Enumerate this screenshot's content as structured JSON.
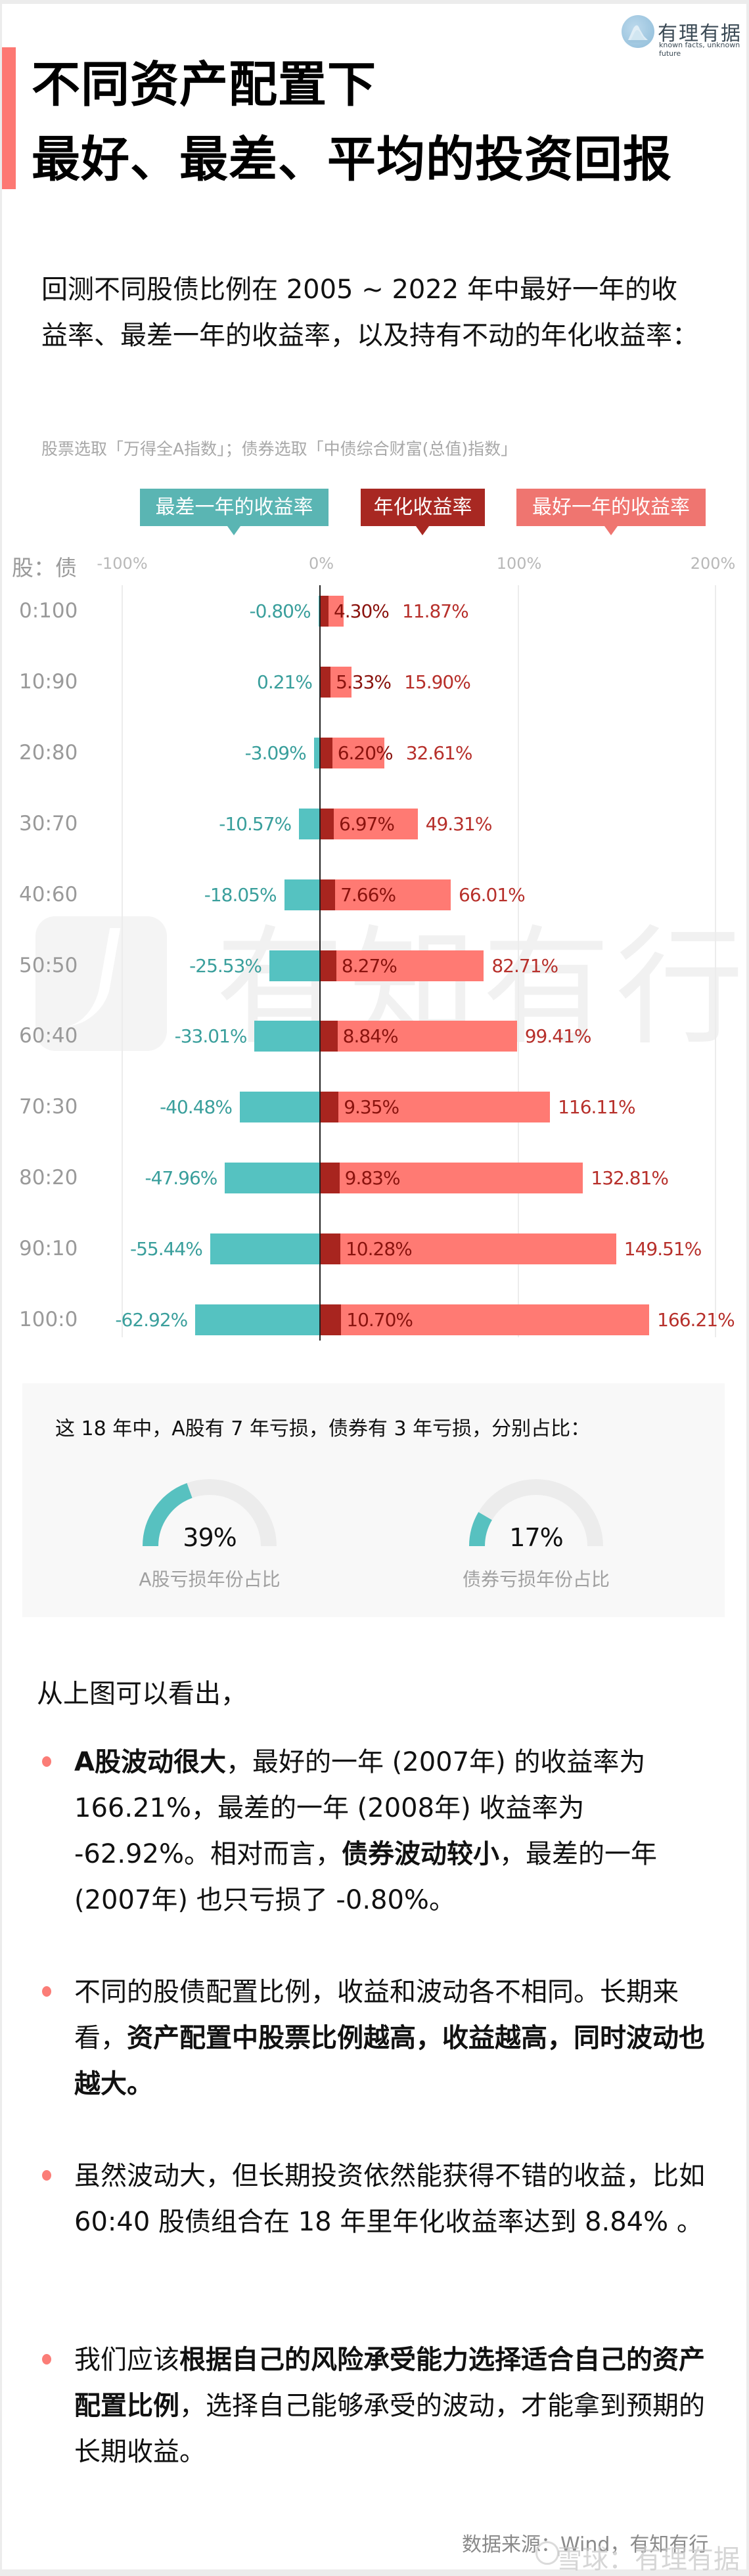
{
  "header": {
    "brand_name": "有理有据",
    "brand_tagline": "known facts, unknown future",
    "title_lines": [
      "不同资产配置下",
      "最好、最差、平均的投资回报"
    ]
  },
  "intro": {
    "text": "回测不同股债比例在 2005 ~ 2022 年中最好一年的收益率、最差一年的收益率，以及持有不动的年化收益率：",
    "note": "股票选取「万得全A指数」；债券选取「中债综合财富(总值)指数」"
  },
  "colors": {
    "worst": "#55c2c1",
    "annual": "#a8251f",
    "best": "#ff7a73",
    "accent": "#fd7873"
  },
  "legend": {
    "worst": "最差一年的收益率",
    "annual": "年化收益率",
    "best": "最好一年的收益率"
  },
  "axis": {
    "row_header": "股：债",
    "ticks": [
      "-100%",
      "0%",
      "100%",
      "200%"
    ]
  },
  "watermark": {
    "chart": "有知有行",
    "footer": "雪球：有理有据"
  },
  "chart_data": {
    "type": "bar",
    "title": "不同资产配置下 最好、最差、平均的投资回报",
    "orientation": "horizontal",
    "categories": [
      "0:100",
      "10:90",
      "20:80",
      "30:70",
      "40:60",
      "50:50",
      "60:40",
      "70:30",
      "80:20",
      "90:10",
      "100:0"
    ],
    "category_label": "股：债",
    "series": [
      {
        "name": "最差一年的收益率",
        "values": [
          -0.8,
          0.21,
          -3.09,
          -10.57,
          -18.05,
          -25.53,
          -33.01,
          -40.48,
          -47.96,
          -55.44,
          -62.92
        ]
      },
      {
        "name": "年化收益率",
        "values": [
          4.3,
          5.33,
          6.2,
          6.97,
          7.66,
          8.27,
          8.84,
          9.35,
          9.83,
          10.28,
          10.7
        ]
      },
      {
        "name": "最好一年的收益率",
        "values": [
          11.87,
          15.9,
          32.61,
          49.31,
          66.01,
          82.71,
          99.41,
          116.11,
          132.81,
          149.51,
          166.21
        ]
      }
    ],
    "labels": {
      "worst": [
        "-0.80%",
        "0.21%",
        "-3.09%",
        "-10.57%",
        "-18.05%",
        "-25.53%",
        "-33.01%",
        "-40.48%",
        "-47.96%",
        "-55.44%",
        "-62.92%"
      ],
      "annual": [
        "4.30%",
        "5.33%",
        "6.20%",
        "6.97%",
        "7.66%",
        "8.27%",
        "8.84%",
        "9.35%",
        "9.83%",
        "10.28%",
        "10.70%"
      ],
      "best": [
        "11.87%",
        "15.90%",
        "32.61%",
        "49.31%",
        "66.01%",
        "82.71%",
        "99.41%",
        "116.11%",
        "132.81%",
        "149.51%",
        "166.21%"
      ]
    },
    "xlabel": "",
    "ylabel": "股：债",
    "xlim": [
      -100,
      200
    ],
    "xticks": [
      "-100%",
      "0%",
      "100%",
      "200%"
    ],
    "grid": true,
    "legend_position": "top"
  },
  "summary": {
    "text": "这 18 年中，A股有 7 年亏损，债券有 3 年亏损，分别占比：",
    "gauges": [
      {
        "value": 39,
        "label_value": "39%",
        "label": "A股亏损年份占比"
      },
      {
        "value": 17,
        "label_value": "17%",
        "label": "债券亏损年份占比"
      }
    ]
  },
  "conclusions": {
    "lead": "从上图可以看出，",
    "bullets": [
      {
        "segments": [
          {
            "b": true,
            "t": "A股波动很大"
          },
          {
            "b": false,
            "t": "，最好的一年 (2007年) 的收益率为 166.21%，最差的一年 (2008年) 收益率为 -62.92%。相对而言，"
          },
          {
            "b": true,
            "t": "债券波动较小"
          },
          {
            "b": false,
            "t": "，最差的一年 (2007年) 也只亏损了 -0.80%。"
          }
        ]
      },
      {
        "segments": [
          {
            "b": false,
            "t": "不同的股债配置比例，收益和波动各不相同。长期来看，"
          },
          {
            "b": true,
            "t": "资产配置中股票比例越高，收益越高，同时波动也越大。"
          }
        ]
      },
      {
        "segments": [
          {
            "b": false,
            "t": "虽然波动大，但长期投资依然能获得不错的收益，比如 60:40 股债组合在 18 年里年化收益率达到 8.84% 。"
          }
        ]
      },
      {
        "segments": [
          {
            "b": false,
            "t": "我们应该"
          },
          {
            "b": true,
            "t": "根据自己的风险承受能力选择适合自己的资产配置比例"
          },
          {
            "b": false,
            "t": "，选择自己能够承受的波动，才能拿到预期的长期收益。"
          }
        ]
      }
    ]
  },
  "footer": {
    "source": "数据来源：Wind，有知有行"
  }
}
